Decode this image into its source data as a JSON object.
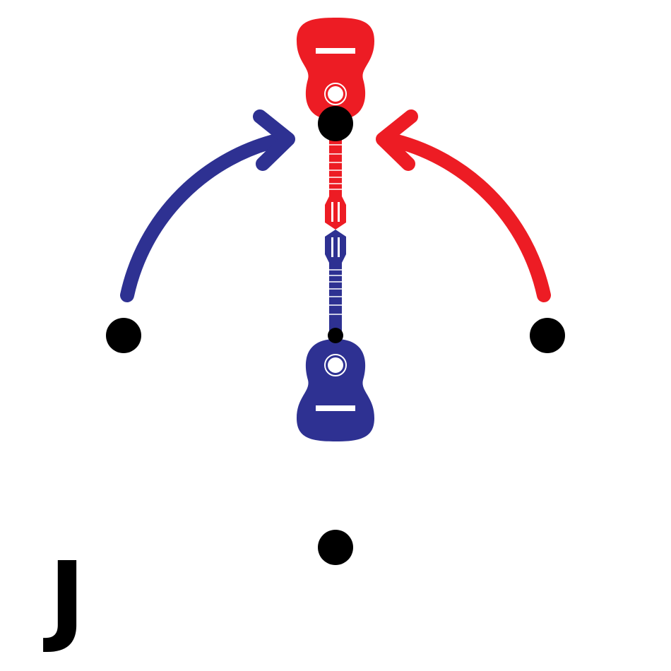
{
  "label": "J"
}
